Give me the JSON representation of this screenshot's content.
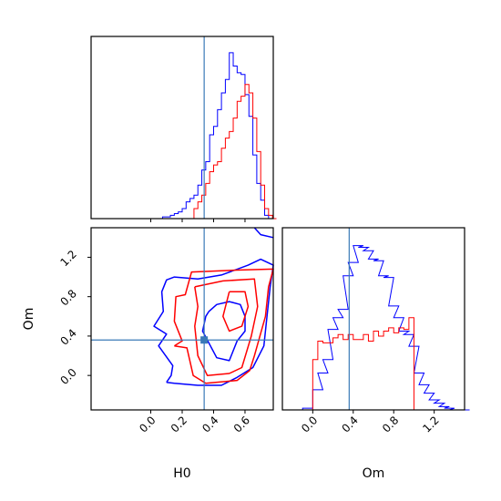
{
  "chart_data": {
    "type": "corner",
    "colors": {
      "run_a": "#0000ff",
      "run_b": "#ff0000",
      "truth": "#3a7ab7"
    },
    "truth": {
      "H0": 0.34,
      "Om": 0.36
    },
    "panels": [
      {
        "id": "hist-H0",
        "type": "histogram",
        "xlim": [
          -0.38,
          0.78
        ],
        "series": [
          {
            "key": "run_a",
            "x": [
              -0.3,
              -0.275,
              -0.25,
              -0.225,
              -0.2,
              -0.175,
              -0.15,
              -0.125,
              -0.1,
              -0.075,
              -0.05,
              -0.025,
              0.0,
              0.025,
              0.05,
              0.075,
              0.1,
              0.125,
              0.15,
              0.175,
              0.2,
              0.225,
              0.25,
              0.275,
              0.3,
              0.325,
              0.35,
              0.375,
              0.4,
              0.425,
              0.45,
              0.475,
              0.5,
              0.525,
              0.55,
              0.575,
              0.6,
              0.625,
              0.65,
              0.675,
              0.7,
              0.725,
              0.75,
              0.775
            ],
            "values": [
              0,
              0,
              0,
              0,
              0,
              0,
              0,
              0,
              0,
              0,
              0,
              0,
              0,
              0,
              0,
              0.01,
              0.01,
              0.02,
              0.03,
              0.04,
              0.06,
              0.1,
              0.12,
              0.14,
              0.2,
              0.29,
              0.34,
              0.5,
              0.55,
              0.65,
              0.75,
              0.83,
              0.99,
              0.91,
              0.87,
              0.86,
              0.74,
              0.61,
              0.38,
              0.21,
              0.11,
              0.02,
              0.0,
              0.0
            ]
          },
          {
            "key": "run_b",
            "x": [
              -0.3,
              -0.275,
              -0.25,
              -0.225,
              -0.2,
              -0.175,
              -0.15,
              -0.125,
              -0.1,
              -0.075,
              -0.05,
              -0.025,
              0.0,
              0.025,
              0.05,
              0.075,
              0.1,
              0.125,
              0.15,
              0.175,
              0.2,
              0.225,
              0.25,
              0.275,
              0.3,
              0.325,
              0.35,
              0.375,
              0.4,
              0.425,
              0.45,
              0.475,
              0.5,
              0.525,
              0.55,
              0.575,
              0.6,
              0.625,
              0.65,
              0.675,
              0.7,
              0.725,
              0.75,
              0.775
            ],
            "values": [
              0,
              0,
              0,
              0,
              0,
              0,
              0,
              0,
              0,
              0,
              0,
              0,
              0,
              0,
              0,
              0,
              0,
              0,
              0,
              0,
              0,
              0,
              0,
              0.06,
              0.1,
              0.14,
              0.21,
              0.28,
              0.32,
              0.34,
              0.42,
              0.48,
              0.52,
              0.6,
              0.7,
              0.73,
              0.8,
              0.75,
              0.6,
              0.4,
              0.2,
              0.06,
              0.02,
              0.0
            ]
          }
        ],
        "xticks": [
          0.0,
          0.2,
          0.4,
          0.6
        ]
      },
      {
        "id": "hist-Om",
        "type": "histogram",
        "xlim": [
          -0.3,
          1.5
        ],
        "xlabel": "Om",
        "xticks": [
          0.0,
          0.4,
          0.8,
          1.2
        ],
        "xtick_labels": [
          "0.0",
          "0.4",
          "0.8",
          "1.2"
        ],
        "series": [
          {
            "key": "run_a",
            "x": [
              -0.2,
              -0.1,
              0.0,
              0.05,
              0.1,
              0.15,
              0.2,
              0.25,
              0.3,
              0.35,
              0.4,
              0.45,
              0.5,
              0.55,
              0.6,
              0.65,
              0.7,
              0.75,
              0.8,
              0.85,
              0.9,
              0.95,
              1.0,
              1.05,
              1.1,
              1.15,
              1.2,
              1.25,
              1.3,
              1.35,
              1.4,
              1.45
            ],
            "values": [
              0,
              0.01,
              0.12,
              0.22,
              0.3,
              0.48,
              0.55,
              0.6,
              0.8,
              0.88,
              0.98,
              0.97,
              0.95,
              0.9,
              0.89,
              0.8,
              0.79,
              0.62,
              0.55,
              0.47,
              0.45,
              0.38,
              0.22,
              0.15,
              0.1,
              0.06,
              0.04,
              0.02,
              0.01,
              0.0,
              0.0,
              0.0
            ]
          },
          {
            "key": "run_b",
            "x": [
              0.0,
              0.05,
              0.1,
              0.15,
              0.2,
              0.25,
              0.3,
              0.35,
              0.4,
              0.45,
              0.5,
              0.55,
              0.6,
              0.65,
              0.7,
              0.75,
              0.8,
              0.85,
              0.9,
              0.95,
              1.0
            ],
            "values": [
              0.3,
              0.41,
              0.4,
              0.4,
              0.43,
              0.45,
              0.42,
              0.45,
              0.42,
              0.42,
              0.45,
              0.41,
              0.47,
              0.44,
              0.47,
              0.49,
              0.46,
              0.49,
              0.48,
              0.55,
              0.0
            ]
          }
        ]
      },
      {
        "id": "contour-H0-Om",
        "type": "contour",
        "xlim": [
          -0.38,
          0.78
        ],
        "ylim": [
          -0.35,
          1.5
        ],
        "xlabel": "H0",
        "ylabel": "Om",
        "xticks": [
          0.0,
          0.2,
          0.4,
          0.6
        ],
        "xtick_labels": [
          "0.0",
          "0.2",
          "0.4",
          "0.6"
        ],
        "yticks": [
          0.0,
          0.4,
          0.8,
          1.2
        ],
        "ytick_labels": [
          "0.0",
          "0.4",
          "0.8",
          "1.2"
        ],
        "contours": [
          {
            "key": "run_a",
            "level": "outer",
            "points": [
              [
                0.1,
                -0.07
              ],
              [
                0.13,
                0.0
              ],
              [
                0.14,
                0.1
              ],
              [
                0.05,
                0.3
              ],
              [
                0.1,
                0.42
              ],
              [
                0.02,
                0.5
              ],
              [
                0.08,
                0.65
              ],
              [
                0.07,
                0.85
              ],
              [
                0.1,
                0.97
              ],
              [
                0.15,
                1.0
              ],
              [
                0.3,
                0.98
              ],
              [
                0.45,
                1.02
              ],
              [
                0.62,
                1.12
              ],
              [
                0.7,
                1.18
              ],
              [
                0.78,
                1.12
              ],
              [
                0.76,
                0.9
              ],
              [
                0.74,
                0.6
              ],
              [
                0.72,
                0.3
              ],
              [
                0.65,
                0.08
              ],
              [
                0.55,
                -0.02
              ],
              [
                0.45,
                -0.1
              ],
              [
                0.3,
                -0.1
              ],
              [
                0.15,
                -0.08
              ],
              [
                0.1,
                -0.07
              ]
            ]
          },
          {
            "key": "run_a",
            "level": "inner",
            "points": [
              [
                0.37,
                0.65
              ],
              [
                0.42,
                0.72
              ],
              [
                0.5,
                0.75
              ],
              [
                0.57,
                0.72
              ],
              [
                0.6,
                0.6
              ],
              [
                0.6,
                0.45
              ],
              [
                0.55,
                0.35
              ],
              [
                0.5,
                0.15
              ],
              [
                0.42,
                0.18
              ],
              [
                0.38,
                0.3
              ],
              [
                0.33,
                0.45
              ],
              [
                0.35,
                0.6
              ],
              [
                0.37,
                0.65
              ]
            ]
          },
          {
            "key": "run_a",
            "level": "edge",
            "points": [
              [
                0.66,
                1.5
              ],
              [
                0.7,
                1.43
              ],
              [
                0.78,
                1.4
              ]
            ]
          },
          {
            "key": "run_b",
            "level": "outer",
            "points": [
              [
                0.15,
                0.3
              ],
              [
                0.2,
                0.35
              ],
              [
                0.15,
                0.55
              ],
              [
                0.16,
                0.8
              ],
              [
                0.22,
                0.82
              ],
              [
                0.26,
                1.05
              ],
              [
                0.55,
                1.07
              ],
              [
                0.78,
                1.08
              ],
              [
                0.75,
                0.9
              ],
              [
                0.73,
                0.6
              ],
              [
                0.66,
                0.2
              ],
              [
                0.63,
                0.05
              ],
              [
                0.55,
                -0.05
              ],
              [
                0.35,
                -0.08
              ],
              [
                0.27,
                0.0
              ],
              [
                0.23,
                0.28
              ],
              [
                0.15,
                0.3
              ]
            ]
          },
          {
            "key": "run_b",
            "level": "inner",
            "points": [
              [
                0.28,
                0.9
              ],
              [
                0.46,
                0.96
              ],
              [
                0.66,
                0.98
              ],
              [
                0.68,
                0.7
              ],
              [
                0.64,
                0.4
              ],
              [
                0.58,
                0.08
              ],
              [
                0.5,
                0.02
              ],
              [
                0.36,
                0.0
              ],
              [
                0.3,
                0.2
              ],
              [
                0.28,
                0.5
              ],
              [
                0.3,
                0.7
              ],
              [
                0.28,
                0.9
              ]
            ]
          },
          {
            "key": "run_b",
            "level": "core",
            "points": [
              [
                0.5,
                0.85
              ],
              [
                0.6,
                0.85
              ],
              [
                0.62,
                0.7
              ],
              [
                0.58,
                0.5
              ],
              [
                0.5,
                0.45
              ],
              [
                0.46,
                0.6
              ],
              [
                0.5,
                0.85
              ]
            ]
          }
        ]
      }
    ]
  }
}
